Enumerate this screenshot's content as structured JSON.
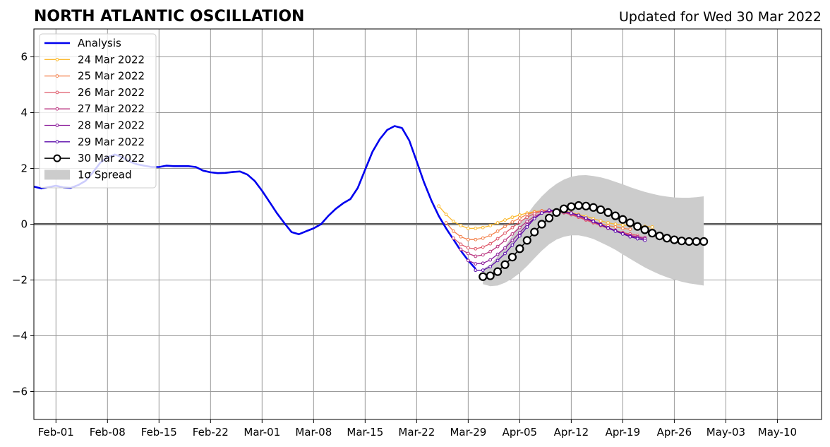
{
  "chart_data": {
    "type": "line",
    "title": "NORTH ATLANTIC OSCILLATION",
    "subtitle": "Updated for Wed 30 Mar 2022",
    "xlabel": "",
    "ylabel": "",
    "x_range": [
      "2022-01-29",
      "2022-05-16"
    ],
    "ylim": [
      -7,
      7
    ],
    "grid": true,
    "legend_position": "top-left",
    "x_ticks": [
      {
        "date": "2022-02-01",
        "label": "Feb-01"
      },
      {
        "date": "2022-02-08",
        "label": "Feb-08"
      },
      {
        "date": "2022-02-15",
        "label": "Feb-15"
      },
      {
        "date": "2022-02-22",
        "label": "Feb-22"
      },
      {
        "date": "2022-03-01",
        "label": "Mar-01"
      },
      {
        "date": "2022-03-08",
        "label": "Mar-08"
      },
      {
        "date": "2022-03-15",
        "label": "Mar-15"
      },
      {
        "date": "2022-03-22",
        "label": "Mar-22"
      },
      {
        "date": "2022-03-29",
        "label": "Mar-29"
      },
      {
        "date": "2022-04-05",
        "label": "Apr-05"
      },
      {
        "date": "2022-04-12",
        "label": "Apr-12"
      },
      {
        "date": "2022-04-19",
        "label": "Apr-19"
      },
      {
        "date": "2022-04-26",
        "label": "Apr-26"
      },
      {
        "date": "2022-05-03",
        "label": "May-03"
      },
      {
        "date": "2022-05-10",
        "label": "May-10"
      }
    ],
    "y_ticks": [
      {
        "value": -6,
        "label": "−6"
      },
      {
        "value": -4,
        "label": "−4"
      },
      {
        "value": -2,
        "label": "−2"
      },
      {
        "value": 0,
        "label": "0"
      },
      {
        "value": 2,
        "label": "2"
      },
      {
        "value": 4,
        "label": "4"
      },
      {
        "value": 6,
        "label": "6"
      }
    ],
    "analysis": {
      "name": "Analysis",
      "color": "#0000ee",
      "start": "2022-01-29",
      "values": [
        1.35,
        1.28,
        1.33,
        1.38,
        1.32,
        1.3,
        1.4,
        1.55,
        1.85,
        2.2,
        2.4,
        2.5,
        2.4,
        2.25,
        2.15,
        2.1,
        2.05,
        2.05,
        2.1,
        2.08,
        2.08,
        2.08,
        2.05,
        1.92,
        1.86,
        1.83,
        1.84,
        1.87,
        1.89,
        1.78,
        1.55,
        1.2,
        0.8,
        0.4,
        0.05,
        -0.28,
        -0.36,
        -0.25,
        -0.15,
        0.0,
        0.3,
        0.55,
        0.75,
        0.9,
        1.3,
        1.95,
        2.6,
        3.05,
        3.38,
        3.52,
        3.45,
        3.0,
        2.25,
        1.5,
        0.85,
        0.3,
        -0.15,
        -0.55,
        -0.95,
        -1.3,
        -1.6
      ]
    },
    "forecasts": [
      {
        "name": "24 Mar 2022",
        "color": "#fbb92e",
        "start": "2022-03-25",
        "values": [
          0.65,
          0.35,
          0.1,
          -0.05,
          -0.15,
          -0.15,
          -0.12,
          -0.05,
          0.05,
          0.15,
          0.25,
          0.33,
          0.4,
          0.45,
          0.48,
          0.5,
          0.5,
          0.47,
          0.42,
          0.35,
          0.28,
          0.2,
          0.12,
          0.05,
          0.0,
          -0.03,
          -0.05,
          -0.07,
          -0.08,
          -0.1
        ]
      },
      {
        "name": "25 Mar 2022",
        "color": "#f3804a",
        "start": "2022-03-26",
        "values": [
          0.05,
          -0.25,
          -0.45,
          -0.55,
          -0.55,
          -0.5,
          -0.4,
          -0.25,
          -0.08,
          0.08,
          0.22,
          0.35,
          0.43,
          0.48,
          0.5,
          0.48,
          0.42,
          0.35,
          0.27,
          0.18,
          0.1,
          0.02,
          -0.05,
          -0.1,
          -0.15,
          -0.18
        ]
      },
      {
        "name": "26 Mar 2022",
        "color": "#df5a6a",
        "start": "2022-03-27",
        "values": [
          -0.5,
          -0.72,
          -0.85,
          -0.88,
          -0.82,
          -0.7,
          -0.52,
          -0.32,
          -0.12,
          0.08,
          0.25,
          0.38,
          0.46,
          0.48,
          0.46,
          0.41,
          0.34,
          0.25,
          0.15,
          0.05,
          -0.05,
          -0.15,
          -0.22,
          -0.3,
          -0.35,
          -0.4
        ]
      },
      {
        "name": "27 Mar 2022",
        "color": "#b9337f",
        "start": "2022-03-28",
        "values": [
          -0.9,
          -1.05,
          -1.15,
          -1.1,
          -0.98,
          -0.8,
          -0.58,
          -0.35,
          -0.12,
          0.1,
          0.28,
          0.4,
          0.45,
          0.45,
          0.42,
          0.36,
          0.28,
          0.18,
          0.08,
          -0.03,
          -0.13,
          -0.22,
          -0.32,
          -0.4,
          -0.45,
          -0.48
        ]
      },
      {
        "name": "28 Mar 2022",
        "color": "#8a1a9a",
        "start": "2022-03-29",
        "values": [
          -1.3,
          -1.42,
          -1.4,
          -1.28,
          -1.08,
          -0.85,
          -0.58,
          -0.3,
          -0.02,
          0.22,
          0.4,
          0.48,
          0.48,
          0.45,
          0.4,
          0.32,
          0.22,
          0.12,
          0.0,
          -0.12,
          -0.23,
          -0.33,
          -0.42,
          -0.48,
          -0.52
        ]
      },
      {
        "name": "29 Mar 2022",
        "color": "#5a0aaa",
        "start": "2022-03-30",
        "values": [
          -1.65,
          -1.65,
          -1.52,
          -1.3,
          -1.05,
          -0.75,
          -0.42,
          -0.1,
          0.2,
          0.4,
          0.5,
          0.5,
          0.46,
          0.4,
          0.32,
          0.22,
          0.1,
          -0.02,
          -0.14,
          -0.25,
          -0.35,
          -0.45,
          -0.52,
          -0.58
        ]
      }
    ],
    "current": {
      "name": "30 Mar 2022",
      "color": "#000000",
      "start": "2022-03-31",
      "values": [
        -1.88,
        -1.85,
        -1.7,
        -1.45,
        -1.18,
        -0.88,
        -0.58,
        -0.28,
        0.0,
        0.22,
        0.42,
        0.55,
        0.63,
        0.67,
        0.65,
        0.6,
        0.52,
        0.42,
        0.3,
        0.17,
        0.05,
        -0.08,
        -0.2,
        -0.32,
        -0.42,
        -0.5,
        -0.56,
        -0.6,
        -0.62,
        -0.62,
        -0.62
      ]
    },
    "spread": {
      "name": "1σ Spread",
      "color": "#cccccc",
      "start": "2022-03-31",
      "upper": [
        -1.6,
        -1.45,
        -1.15,
        -0.8,
        -0.4,
        0.0,
        0.35,
        0.7,
        1.0,
        1.25,
        1.45,
        1.6,
        1.7,
        1.75,
        1.76,
        1.73,
        1.68,
        1.61,
        1.52,
        1.43,
        1.33,
        1.24,
        1.16,
        1.09,
        1.03,
        0.99,
        0.96,
        0.95,
        0.95,
        0.97,
        1.0
      ],
      "lower": [
        -2.15,
        -2.22,
        -2.2,
        -2.1,
        -1.95,
        -1.75,
        -1.5,
        -1.22,
        -0.95,
        -0.72,
        -0.55,
        -0.45,
        -0.4,
        -0.4,
        -0.45,
        -0.53,
        -0.65,
        -0.78,
        -0.92,
        -1.08,
        -1.24,
        -1.4,
        -1.55,
        -1.68,
        -1.8,
        -1.9,
        -1.99,
        -2.06,
        -2.12,
        -2.16,
        -2.2
      ]
    }
  }
}
